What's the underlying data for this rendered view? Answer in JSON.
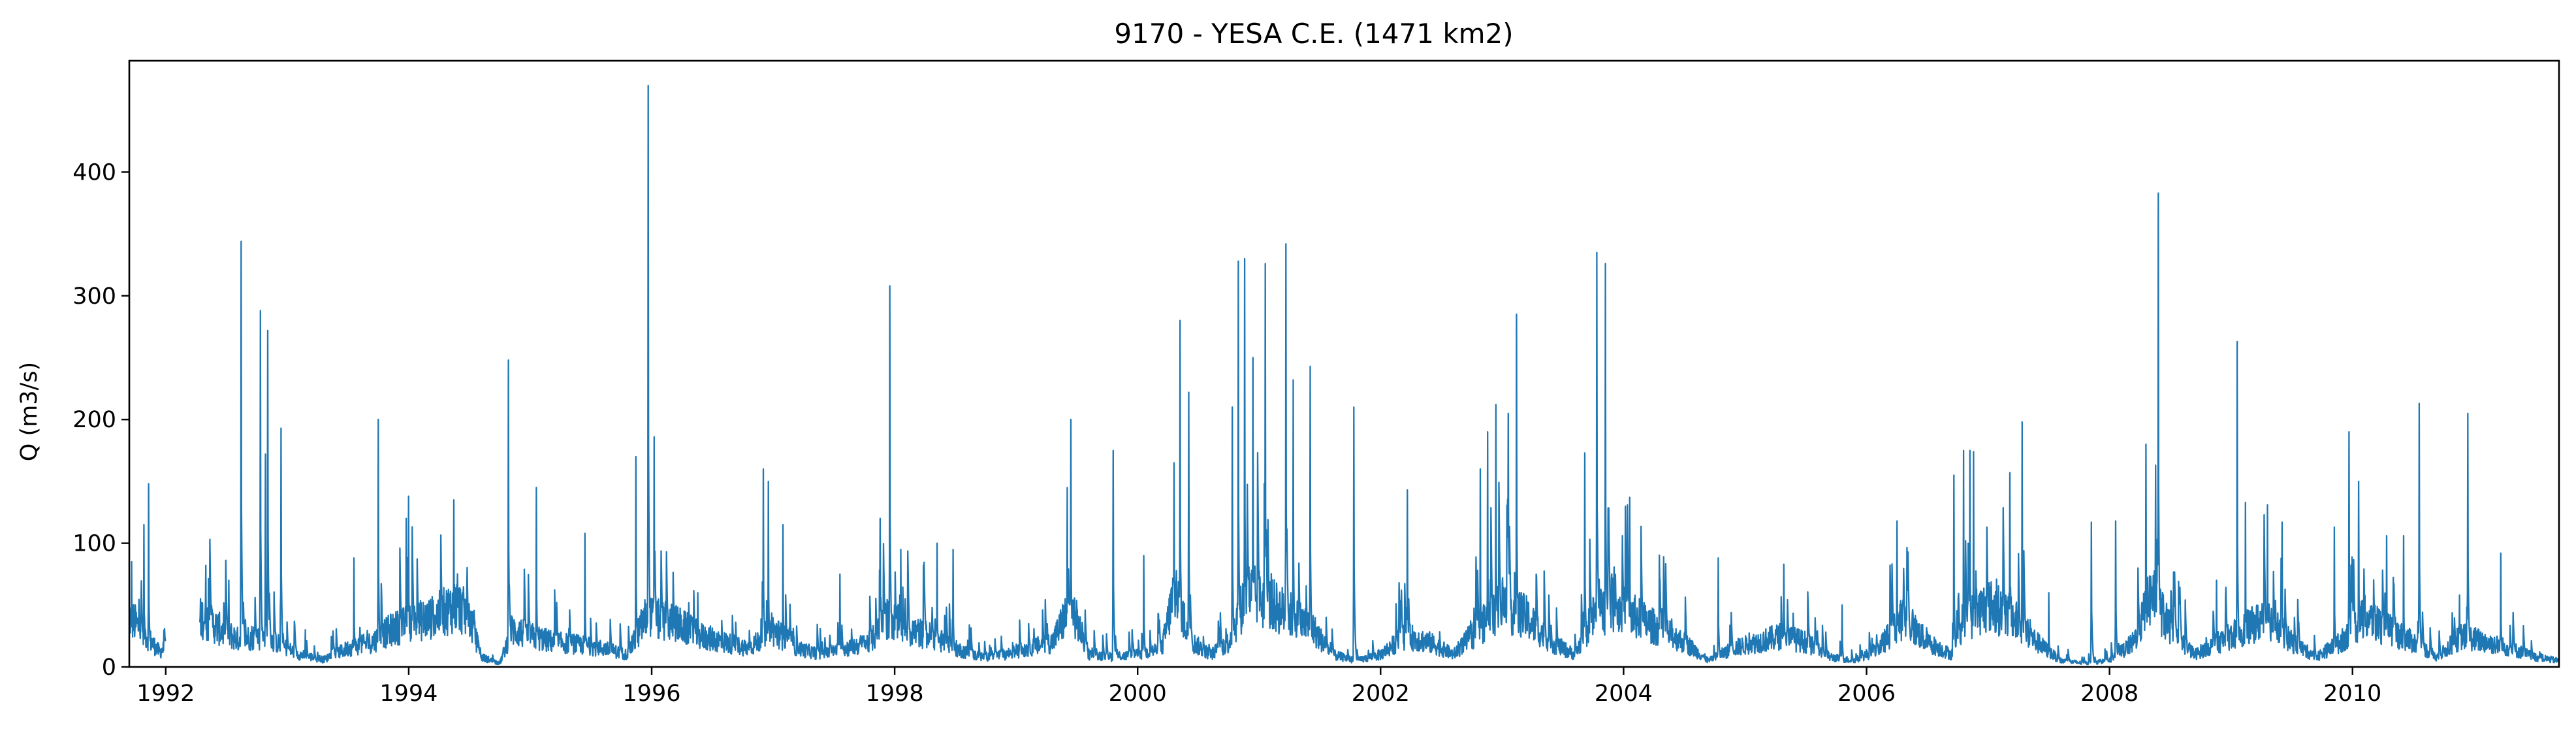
{
  "chart_data": {
    "type": "line",
    "title": "9170 - YESA C.E. (1471 km2)",
    "xlabel": "",
    "ylabel": "Q (m3/s)",
    "xlim": [
      1991.7,
      2011.7
    ],
    "ylim": [
      0,
      490
    ],
    "x_ticks": [
      "1992",
      "1994",
      "1996",
      "1998",
      "2000",
      "2002",
      "2004",
      "2006",
      "2008",
      "2010"
    ],
    "y_ticks": [
      "0",
      "100",
      "200",
      "300",
      "400"
    ],
    "grid": false,
    "legend": "none",
    "series": [
      {
        "color": "#1f77b4",
        "gap": [
          1992.0,
          1992.28
        ],
        "baseline_points": [
          [
            1991.7,
            40
          ],
          [
            1991.8,
            30
          ],
          [
            1991.95,
            12
          ],
          [
            1992.3,
            40
          ],
          [
            1992.45,
            30
          ],
          [
            1992.6,
            22
          ],
          [
            1992.75,
            25
          ],
          [
            1992.9,
            20
          ],
          [
            1993.1,
            10
          ],
          [
            1993.3,
            6
          ],
          [
            1993.5,
            15
          ],
          [
            1993.7,
            20
          ],
          [
            1993.85,
            30
          ],
          [
            1994.0,
            35
          ],
          [
            1994.2,
            40
          ],
          [
            1994.4,
            50
          ],
          [
            1994.5,
            40
          ],
          [
            1994.6,
            8
          ],
          [
            1994.75,
            3
          ],
          [
            1994.85,
            30
          ],
          [
            1995.0,
            25
          ],
          [
            1995.2,
            20
          ],
          [
            1995.4,
            18
          ],
          [
            1995.6,
            15
          ],
          [
            1995.8,
            10
          ],
          [
            1995.95,
            40
          ],
          [
            1996.2,
            35
          ],
          [
            1996.4,
            25
          ],
          [
            1996.6,
            20
          ],
          [
            1996.8,
            15
          ],
          [
            1997.0,
            30
          ],
          [
            1997.2,
            15
          ],
          [
            1997.4,
            10
          ],
          [
            1997.6,
            15
          ],
          [
            1997.8,
            20
          ],
          [
            1997.95,
            40
          ],
          [
            1998.1,
            30
          ],
          [
            1998.3,
            25
          ],
          [
            1998.5,
            15
          ],
          [
            1998.7,
            8
          ],
          [
            1998.9,
            10
          ],
          [
            1999.1,
            15
          ],
          [
            1999.3,
            20
          ],
          [
            1999.45,
            50
          ],
          [
            1999.6,
            10
          ],
          [
            1999.8,
            8
          ],
          [
            2000.0,
            10
          ],
          [
            2000.2,
            15
          ],
          [
            2000.3,
            60
          ],
          [
            2000.45,
            20
          ],
          [
            2000.6,
            10
          ],
          [
            2000.75,
            20
          ],
          [
            2000.9,
            60
          ],
          [
            2001.1,
            50
          ],
          [
            2001.3,
            40
          ],
          [
            2001.45,
            30
          ],
          [
            2001.6,
            10
          ],
          [
            2001.8,
            5
          ],
          [
            2002.0,
            10
          ],
          [
            2002.2,
            25
          ],
          [
            2002.4,
            20
          ],
          [
            2002.6,
            10
          ],
          [
            2002.8,
            30
          ],
          [
            2003.0,
            50
          ],
          [
            2003.2,
            40
          ],
          [
            2003.4,
            20
          ],
          [
            2003.6,
            10
          ],
          [
            2003.75,
            40
          ],
          [
            2003.9,
            50
          ],
          [
            2004.1,
            40
          ],
          [
            2004.3,
            30
          ],
          [
            2004.5,
            20
          ],
          [
            2004.7,
            5
          ],
          [
            2004.9,
            15
          ],
          [
            2005.1,
            20
          ],
          [
            2005.3,
            25
          ],
          [
            2005.5,
            20
          ],
          [
            2005.7,
            8
          ],
          [
            2005.9,
            5
          ],
          [
            2006.1,
            15
          ],
          [
            2006.3,
            40
          ],
          [
            2006.5,
            20
          ],
          [
            2006.7,
            10
          ],
          [
            2006.85,
            40
          ],
          [
            2007.0,
            50
          ],
          [
            2007.2,
            40
          ],
          [
            2007.4,
            20
          ],
          [
            2007.6,
            5
          ],
          [
            2007.8,
            3
          ],
          [
            2008.0,
            5
          ],
          [
            2008.2,
            20
          ],
          [
            2008.35,
            60
          ],
          [
            2008.5,
            30
          ],
          [
            2008.7,
            10
          ],
          [
            2008.9,
            20
          ],
          [
            2009.1,
            30
          ],
          [
            2009.3,
            40
          ],
          [
            2009.5,
            20
          ],
          [
            2009.7,
            8
          ],
          [
            2009.9,
            20
          ],
          [
            2010.1,
            40
          ],
          [
            2010.3,
            30
          ],
          [
            2010.5,
            20
          ],
          [
            2010.7,
            8
          ],
          [
            2010.9,
            25
          ],
          [
            2011.1,
            20
          ],
          [
            2011.3,
            15
          ],
          [
            2011.5,
            8
          ],
          [
            2011.7,
            5
          ]
        ],
        "peaks": [
          [
            1991.72,
            85
          ],
          [
            1991.82,
            115
          ],
          [
            1991.86,
            148
          ],
          [
            1992.33,
            82
          ],
          [
            1992.52,
            70
          ],
          [
            1992.62,
            344
          ],
          [
            1992.78,
            288
          ],
          [
            1992.82,
            172
          ],
          [
            1992.84,
            272
          ],
          [
            1992.95,
            193
          ],
          [
            1993.15,
            30
          ],
          [
            1993.55,
            88
          ],
          [
            1993.75,
            200
          ],
          [
            1993.98,
            120
          ],
          [
            1994.0,
            138
          ],
          [
            1994.37,
            135
          ],
          [
            1994.82,
            248
          ],
          [
            1995.05,
            145
          ],
          [
            1995.45,
            108
          ],
          [
            1995.87,
            170
          ],
          [
            1995.97,
            470
          ],
          [
            1996.02,
            186
          ],
          [
            1996.38,
            60
          ],
          [
            1996.92,
            160
          ],
          [
            1996.96,
            150
          ],
          [
            1997.08,
            115
          ],
          [
            1997.55,
            75
          ],
          [
            1997.88,
            120
          ],
          [
            1997.96,
            308
          ],
          [
            1998.05,
            95
          ],
          [
            1998.35,
            100
          ],
          [
            1998.48,
            95
          ],
          [
            1999.45,
            200
          ],
          [
            1999.42,
            145
          ],
          [
            1999.8,
            175
          ],
          [
            2000.05,
            90
          ],
          [
            2000.3,
            165
          ],
          [
            2000.35,
            280
          ],
          [
            2000.42,
            222
          ],
          [
            2000.78,
            210
          ],
          [
            2000.83,
            328
          ],
          [
            2000.88,
            330
          ],
          [
            2000.95,
            250
          ],
          [
            2001.05,
            326
          ],
          [
            2001.22,
            342
          ],
          [
            2001.28,
            232
          ],
          [
            2001.42,
            243
          ],
          [
            2001.78,
            210
          ],
          [
            2002.22,
            143
          ],
          [
            2002.82,
            160
          ],
          [
            2002.88,
            190
          ],
          [
            2002.95,
            212
          ],
          [
            2003.05,
            205
          ],
          [
            2003.12,
            285
          ],
          [
            2003.28,
            75
          ],
          [
            2003.68,
            173
          ],
          [
            2003.78,
            335
          ],
          [
            2003.85,
            326
          ],
          [
            2004.05,
            137
          ],
          [
            2004.3,
            70
          ],
          [
            2004.78,
            88
          ],
          [
            2005.32,
            83
          ],
          [
            2005.8,
            50
          ],
          [
            2006.25,
            118
          ],
          [
            2006.72,
            155
          ],
          [
            2006.8,
            175
          ],
          [
            2006.85,
            175
          ],
          [
            2006.88,
            174
          ],
          [
            2007.18,
            157
          ],
          [
            2007.28,
            198
          ],
          [
            2007.5,
            60
          ],
          [
            2007.85,
            117
          ],
          [
            2008.05,
            118
          ],
          [
            2008.3,
            180
          ],
          [
            2008.38,
            163
          ],
          [
            2008.4,
            383
          ],
          [
            2008.88,
            70
          ],
          [
            2009.05,
            263
          ],
          [
            2009.12,
            133
          ],
          [
            2009.3,
            131
          ],
          [
            2009.42,
            117
          ],
          [
            2009.85,
            113
          ],
          [
            2009.97,
            190
          ],
          [
            2010.05,
            150
          ],
          [
            2010.28,
            106
          ],
          [
            2010.42,
            106
          ],
          [
            2010.55,
            213
          ],
          [
            2010.88,
            58
          ],
          [
            2010.95,
            205
          ],
          [
            2011.22,
            92
          ]
        ]
      }
    ]
  }
}
